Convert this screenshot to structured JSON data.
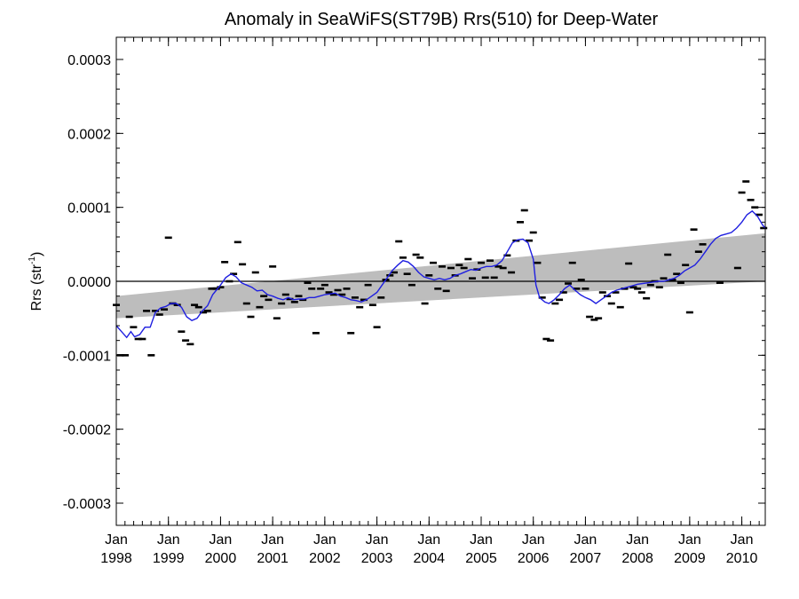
{
  "chart_data": {
    "type": "scatter",
    "title": "Anomaly in SeaWiFS(ST79B) Rrs(510) for Deep-Water",
    "ylabel": {
      "main": "Rrs (str",
      "sup": "-1",
      "end": ")"
    },
    "xlabel": "",
    "xlim": [
      1998.0,
      2010.45
    ],
    "ylim": [
      -0.00033,
      0.00033
    ],
    "grid": false,
    "legend": "none",
    "colors": {
      "monthly": "#000000",
      "smoothed": "#1f1fe0",
      "trend_band": "#bdbdbd"
    },
    "y_ticks": [
      {
        "value": 0.0003,
        "label": "0.0003"
      },
      {
        "value": 0.0002,
        "label": "0.0002"
      },
      {
        "value": 0.0001,
        "label": "0.0001"
      },
      {
        "value": 0.0,
        "label": "0.0000"
      },
      {
        "value": -0.0001,
        "label": "-0.0001"
      },
      {
        "value": -0.0002,
        "label": "-0.0002"
      },
      {
        "value": -0.0003,
        "label": "-0.0003"
      }
    ],
    "x_ticks": [
      {
        "value": 1998,
        "month": "Jan",
        "year": "1998"
      },
      {
        "value": 1999,
        "month": "Jan",
        "year": "1999"
      },
      {
        "value": 2000,
        "month": "Jan",
        "year": "2000"
      },
      {
        "value": 2001,
        "month": "Jan",
        "year": "2001"
      },
      {
        "value": 2002,
        "month": "Jan",
        "year": "2002"
      },
      {
        "value": 2003,
        "month": "Jan",
        "year": "2003"
      },
      {
        "value": 2004,
        "month": "Jan",
        "year": "2004"
      },
      {
        "value": 2005,
        "month": "Jan",
        "year": "2005"
      },
      {
        "value": 2006,
        "month": "Jan",
        "year": "2006"
      },
      {
        "value": 2007,
        "month": "Jan",
        "year": "2007"
      },
      {
        "value": 2008,
        "month": "Jan",
        "year": "2008"
      },
      {
        "value": 2009,
        "month": "Jan",
        "year": "2009"
      },
      {
        "value": 2010,
        "month": "Jan",
        "year": "2010"
      }
    ],
    "zero_line": 0.0,
    "trend_band": {
      "x": [
        1998.0,
        2010.45
      ],
      "upper": [
        -2e-05,
        6.5e-05
      ],
      "lower": [
        -5e-05,
        0.0
      ]
    },
    "monthly_anomaly": [
      [
        1998.0,
        -3.2e-05
      ],
      [
        1998.08,
        -0.0001
      ],
      [
        1998.17,
        -0.0001
      ],
      [
        1998.25,
        -4.8e-05
      ],
      [
        1998.33,
        -6.2e-05
      ],
      [
        1998.42,
        -7.8e-05
      ],
      [
        1998.5,
        -7.8e-05
      ],
      [
        1998.58,
        -4e-05
      ],
      [
        1998.67,
        -0.0001
      ],
      [
        1998.75,
        -4e-05
      ],
      [
        1998.83,
        -4.5e-05
      ],
      [
        1998.92,
        -3.8e-05
      ],
      [
        1999.0,
        5.9e-05
      ],
      [
        1999.08,
        -3e-05
      ],
      [
        1999.17,
        -3.2e-05
      ],
      [
        1999.25,
        -6.8e-05
      ],
      [
        1999.33,
        -8e-05
      ],
      [
        1999.42,
        -8.5e-05
      ],
      [
        1999.5,
        -3.2e-05
      ],
      [
        1999.58,
        -3.5e-05
      ],
      [
        1999.67,
        -4.2e-05
      ],
      [
        1999.75,
        -4e-05
      ],
      [
        1999.83,
        -1e-05
      ],
      [
        1999.92,
        -1e-05
      ],
      [
        2000.0,
        -8e-06
      ],
      [
        2000.08,
        2.6e-05
      ],
      [
        2000.17,
        0.0
      ],
      [
        2000.25,
        1e-05
      ],
      [
        2000.33,
        5.3e-05
      ],
      [
        2000.42,
        2.3e-05
      ],
      [
        2000.5,
        -3e-05
      ],
      [
        2000.58,
        -4.8e-05
      ],
      [
        2000.67,
        1.2e-05
      ],
      [
        2000.75,
        -3.5e-05
      ],
      [
        2000.83,
        -2e-05
      ],
      [
        2000.92,
        -2.5e-05
      ],
      [
        2001.0,
        2e-05
      ],
      [
        2001.08,
        -5e-05
      ],
      [
        2001.17,
        -3e-05
      ],
      [
        2001.25,
        -1.8e-05
      ],
      [
        2001.33,
        -2.4e-05
      ],
      [
        2001.42,
        -2.8e-05
      ],
      [
        2001.5,
        -2e-05
      ],
      [
        2001.58,
        -2.5e-05
      ],
      [
        2001.67,
        -2e-06
      ],
      [
        2001.75,
        -1e-05
      ],
      [
        2001.83,
        -7e-05
      ],
      [
        2001.92,
        -1e-05
      ],
      [
        2002.0,
        -5e-06
      ],
      [
        2002.08,
        -1.5e-05
      ],
      [
        2002.17,
        -1.8e-05
      ],
      [
        2002.25,
        -1.2e-05
      ],
      [
        2002.33,
        -1.8e-05
      ],
      [
        2002.42,
        -1e-05
      ],
      [
        2002.5,
        -7e-05
      ],
      [
        2002.58,
        -2.2e-05
      ],
      [
        2002.67,
        -3.5e-05
      ],
      [
        2002.75,
        -2.5e-05
      ],
      [
        2002.83,
        -5e-06
      ],
      [
        2002.92,
        -3.2e-05
      ],
      [
        2003.0,
        -6.2e-05
      ],
      [
        2003.08,
        -2.2e-05
      ],
      [
        2003.17,
        2e-06
      ],
      [
        2003.25,
        8e-06
      ],
      [
        2003.33,
        1.2e-05
      ],
      [
        2003.42,
        5.4e-05
      ],
      [
        2003.5,
        3.2e-05
      ],
      [
        2003.58,
        1e-05
      ],
      [
        2003.67,
        -5e-06
      ],
      [
        2003.75,
        3.6e-05
      ],
      [
        2003.83,
        3.2e-05
      ],
      [
        2003.92,
        -3e-05
      ],
      [
        2004.0,
        8e-06
      ],
      [
        2004.08,
        2.5e-05
      ],
      [
        2004.17,
        -1e-05
      ],
      [
        2004.25,
        2e-05
      ],
      [
        2004.33,
        -1.3e-05
      ],
      [
        2004.42,
        1.8e-05
      ],
      [
        2004.5,
        8e-06
      ],
      [
        2004.58,
        2.2e-05
      ],
      [
        2004.67,
        1.8e-05
      ],
      [
        2004.75,
        3e-05
      ],
      [
        2004.83,
        4e-06
      ],
      [
        2004.92,
        1.6e-05
      ],
      [
        2005.0,
        2.5e-05
      ],
      [
        2005.08,
        5e-06
      ],
      [
        2005.17,
        2.8e-05
      ],
      [
        2005.25,
        5e-06
      ],
      [
        2005.33,
        2e-05
      ],
      [
        2005.42,
        1.8e-05
      ],
      [
        2005.5,
        3.5e-05
      ],
      [
        2005.58,
        1.2e-05
      ],
      [
        2005.67,
        5.5e-05
      ],
      [
        2005.75,
        8e-05
      ],
      [
        2005.83,
        9.6e-05
      ],
      [
        2005.92,
        5.5e-05
      ],
      [
        2006.0,
        6.6e-05
      ],
      [
        2006.08,
        2.5e-05
      ],
      [
        2006.17,
        -2.2e-05
      ],
      [
        2006.25,
        -7.8e-05
      ],
      [
        2006.33,
        -8e-05
      ],
      [
        2006.42,
        -3e-05
      ],
      [
        2006.5,
        -2.5e-05
      ],
      [
        2006.58,
        -1.5e-05
      ],
      [
        2006.67,
        -3e-06
      ],
      [
        2006.75,
        2.5e-05
      ],
      [
        2006.83,
        -1e-05
      ],
      [
        2006.92,
        2e-06
      ],
      [
        2007.0,
        -1e-05
      ],
      [
        2007.08,
        -4.8e-05
      ],
      [
        2007.17,
        -5.2e-05
      ],
      [
        2007.25,
        -5e-05
      ],
      [
        2007.33,
        -1.5e-05
      ],
      [
        2007.42,
        -2e-05
      ],
      [
        2007.5,
        -3e-05
      ],
      [
        2007.58,
        -1.5e-05
      ],
      [
        2007.67,
        -3.5e-05
      ],
      [
        2007.75,
        -1e-05
      ],
      [
        2007.83,
        2.4e-05
      ],
      [
        2007.92,
        -8e-06
      ],
      [
        2008.0,
        -1e-05
      ],
      [
        2008.08,
        -1.5e-05
      ],
      [
        2008.17,
        -2.3e-05
      ],
      [
        2008.25,
        -5e-06
      ],
      [
        2008.33,
        0.0
      ],
      [
        2008.42,
        -8e-06
      ],
      [
        2008.5,
        4e-06
      ],
      [
        2008.58,
        3.6e-05
      ],
      [
        2008.67,
        2e-06
      ],
      [
        2008.75,
        1e-05
      ],
      [
        2008.83,
        -2e-06
      ],
      [
        2008.92,
        2.2e-05
      ],
      [
        2009.0,
        -4.2e-05
      ],
      [
        2009.08,
        7e-05
      ],
      [
        2009.17,
        4e-05
      ],
      [
        2009.25,
        5e-05
      ],
      [
        2009.58,
        -2e-06
      ],
      [
        2009.92,
        1.8e-05
      ],
      [
        2010.0,
        0.00012
      ],
      [
        2010.08,
        0.000135
      ],
      [
        2010.17,
        0.00011
      ],
      [
        2010.25,
        0.0001
      ],
      [
        2010.33,
        9e-05
      ],
      [
        2010.42,
        7.2e-05
      ]
    ],
    "smoothed_anomaly": [
      [
        1998.0,
        -6e-05
      ],
      [
        1998.1,
        -6.8e-05
      ],
      [
        1998.2,
        -7.6e-05
      ],
      [
        1998.28,
        -6.8e-05
      ],
      [
        1998.35,
        -7.5e-05
      ],
      [
        1998.45,
        -7.2e-05
      ],
      [
        1998.55,
        -6.2e-05
      ],
      [
        1998.65,
        -6.2e-05
      ],
      [
        1998.75,
        -4.2e-05
      ],
      [
        1998.85,
        -3.6e-05
      ],
      [
        1998.95,
        -3.4e-05
      ],
      [
        1999.05,
        -3e-05
      ],
      [
        1999.15,
        -3e-05
      ],
      [
        1999.25,
        -3.5e-05
      ],
      [
        1999.35,
        -4.8e-05
      ],
      [
        1999.45,
        -5.3e-05
      ],
      [
        1999.55,
        -5e-05
      ],
      [
        1999.65,
        -4e-05
      ],
      [
        1999.75,
        -3.3e-05
      ],
      [
        1999.85,
        -1.8e-05
      ],
      [
        2000.0,
        -5e-06
      ],
      [
        2000.1,
        5e-06
      ],
      [
        2000.2,
        1e-05
      ],
      [
        2000.3,
        6e-06
      ],
      [
        2000.4,
        -2e-06
      ],
      [
        2000.5,
        -5e-06
      ],
      [
        2000.6,
        -8e-06
      ],
      [
        2000.7,
        -1.3e-05
      ],
      [
        2000.8,
        -1.2e-05
      ],
      [
        2000.9,
        -1.8e-05
      ],
      [
        2001.0,
        -2e-05
      ],
      [
        2001.1,
        -2.3e-05
      ],
      [
        2001.2,
        -2.5e-05
      ],
      [
        2001.3,
        -2.2e-05
      ],
      [
        2001.4,
        -2.5e-05
      ],
      [
        2001.5,
        -2.4e-05
      ],
      [
        2001.6,
        -2.4e-05
      ],
      [
        2001.7,
        -2.2e-05
      ],
      [
        2001.8,
        -2.2e-05
      ],
      [
        2001.9,
        -2e-05
      ],
      [
        2002.0,
        -1.8e-05
      ],
      [
        2002.1,
        -1.7e-05
      ],
      [
        2002.2,
        -1.6e-05
      ],
      [
        2002.3,
        -2e-05
      ],
      [
        2002.4,
        -2.2e-05
      ],
      [
        2002.5,
        -2.5e-05
      ],
      [
        2002.6,
        -2.6e-05
      ],
      [
        2002.7,
        -2.8e-05
      ],
      [
        2002.8,
        -2.5e-05
      ],
      [
        2002.9,
        -2e-05
      ],
      [
        2003.0,
        -1.5e-05
      ],
      [
        2003.1,
        -5e-06
      ],
      [
        2003.2,
        5e-06
      ],
      [
        2003.3,
        1.5e-05
      ],
      [
        2003.4,
        2.2e-05
      ],
      [
        2003.5,
        2.8e-05
      ],
      [
        2003.6,
        2.6e-05
      ],
      [
        2003.7,
        2e-05
      ],
      [
        2003.8,
        1.2e-05
      ],
      [
        2003.9,
        6e-06
      ],
      [
        2004.0,
        4e-06
      ],
      [
        2004.1,
        2e-06
      ],
      [
        2004.2,
        4e-06
      ],
      [
        2004.3,
        2e-06
      ],
      [
        2004.4,
        4e-06
      ],
      [
        2004.5,
        8e-06
      ],
      [
        2004.6,
        1e-05
      ],
      [
        2004.7,
        1.3e-05
      ],
      [
        2004.8,
        1.6e-05
      ],
      [
        2004.9,
        1.5e-05
      ],
      [
        2005.0,
        1.8e-05
      ],
      [
        2005.1,
        2e-05
      ],
      [
        2005.2,
        2e-05
      ],
      [
        2005.3,
        2.2e-05
      ],
      [
        2005.4,
        2.8e-05
      ],
      [
        2005.5,
        4e-05
      ],
      [
        2005.6,
        5.2e-05
      ],
      [
        2005.7,
        5.6e-05
      ],
      [
        2005.8,
        5.7e-05
      ],
      [
        2005.9,
        5.2e-05
      ],
      [
        2006.0,
        3e-05
      ],
      [
        2006.05,
        -5e-06
      ],
      [
        2006.12,
        -2.2e-05
      ],
      [
        2006.22,
        -2.8e-05
      ],
      [
        2006.3,
        -3e-05
      ],
      [
        2006.4,
        -2.5e-05
      ],
      [
        2006.5,
        -1.8e-05
      ],
      [
        2006.6,
        -1e-05
      ],
      [
        2006.7,
        -5e-06
      ],
      [
        2006.8,
        -1.2e-05
      ],
      [
        2006.9,
        -1.8e-05
      ],
      [
        2007.0,
        -2.2e-05
      ],
      [
        2007.1,
        -2.5e-05
      ],
      [
        2007.2,
        -3e-05
      ],
      [
        2007.3,
        -2.5e-05
      ],
      [
        2007.4,
        -2e-05
      ],
      [
        2007.5,
        -1.5e-05
      ],
      [
        2007.6,
        -1.2e-05
      ],
      [
        2007.7,
        -1e-05
      ],
      [
        2007.8,
        -8e-06
      ],
      [
        2007.9,
        -6e-06
      ],
      [
        2008.0,
        -4e-06
      ],
      [
        2008.1,
        -3e-06
      ],
      [
        2008.2,
        -2e-06
      ],
      [
        2008.3,
        -1e-06
      ],
      [
        2008.4,
        0.0
      ],
      [
        2008.5,
        0.0
      ],
      [
        2008.6,
        2e-06
      ],
      [
        2008.7,
        4e-06
      ],
      [
        2008.8,
        8e-06
      ],
      [
        2008.9,
        1.4e-05
      ],
      [
        2009.0,
        1.8e-05
      ],
      [
        2009.1,
        2.2e-05
      ],
      [
        2009.2,
        3e-05
      ],
      [
        2009.3,
        4e-05
      ],
      [
        2009.4,
        5e-05
      ],
      [
        2009.5,
        5.8e-05
      ],
      [
        2009.6,
        6.2e-05
      ],
      [
        2009.7,
        6.4e-05
      ],
      [
        2009.8,
        6.6e-05
      ],
      [
        2009.9,
        7.2e-05
      ],
      [
        2010.0,
        8e-05
      ],
      [
        2010.1,
        9e-05
      ],
      [
        2010.2,
        9.5e-05
      ],
      [
        2010.3,
        8.8e-05
      ],
      [
        2010.4,
        7.6e-05
      ],
      [
        2010.45,
        7.2e-05
      ]
    ]
  }
}
